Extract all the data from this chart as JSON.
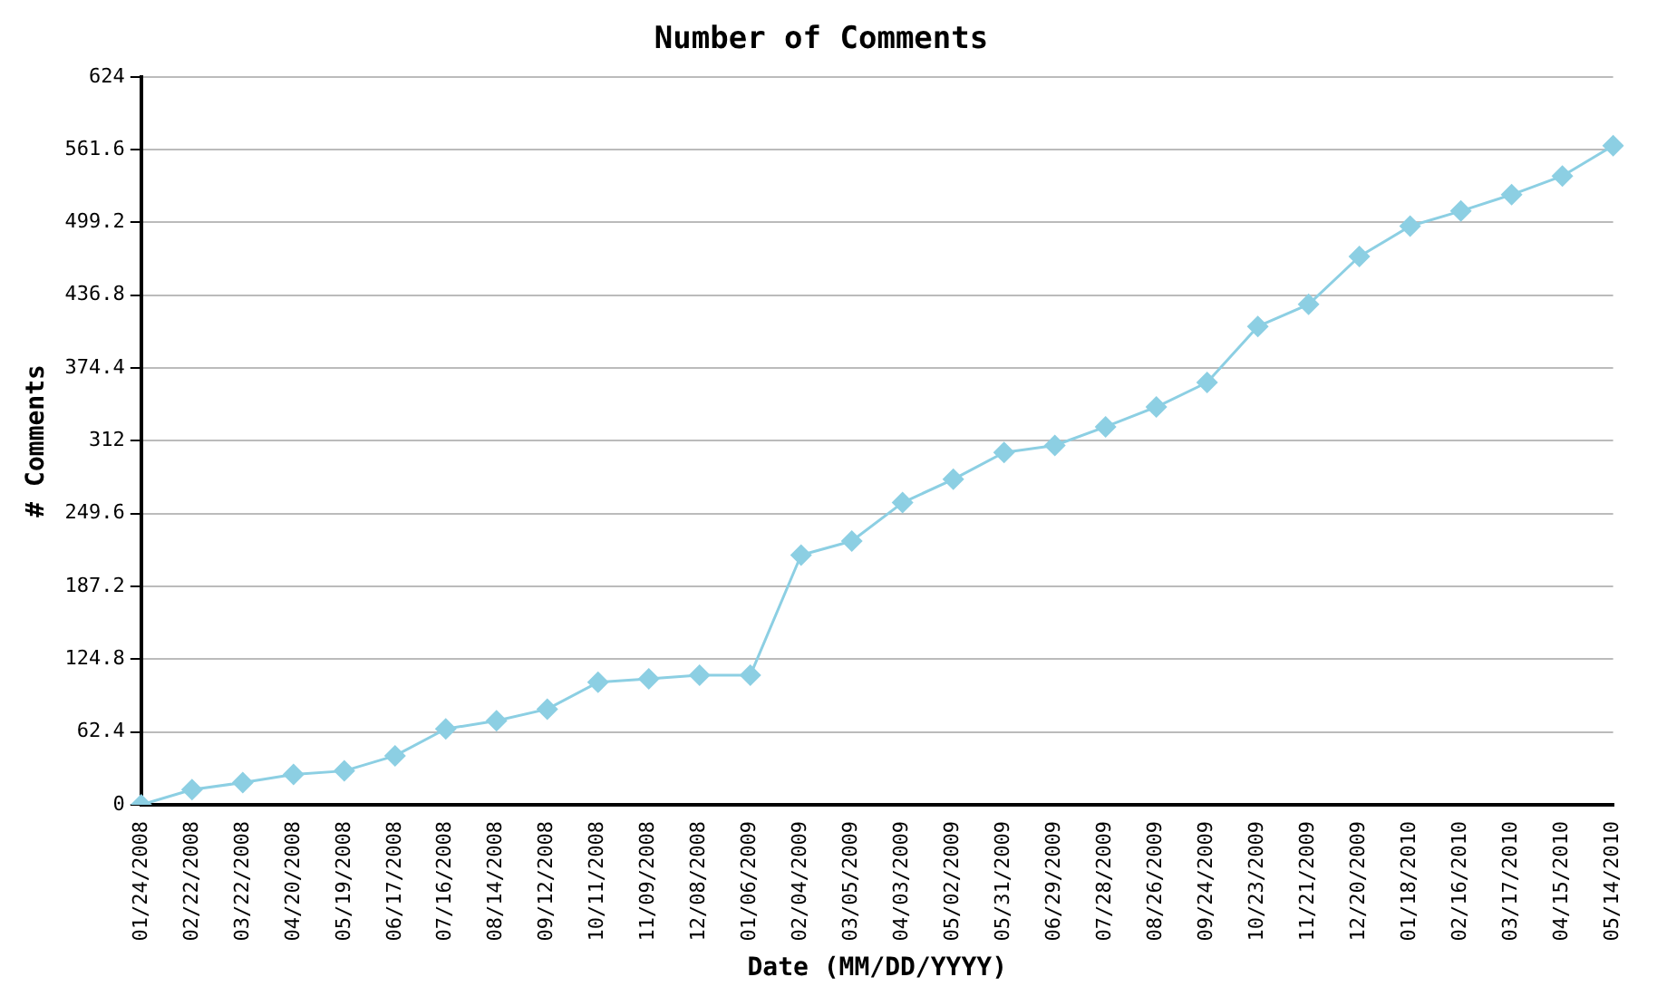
{
  "chart_data": {
    "type": "line",
    "title": "Number of Comments",
    "xlabel": "Date (MM/DD/YYYY)",
    "ylabel": "# Comments",
    "categories": [
      "01/24/2008",
      "02/22/2008",
      "03/22/2008",
      "04/20/2008",
      "05/19/2008",
      "06/17/2008",
      "07/16/2008",
      "08/14/2008",
      "09/12/2008",
      "10/11/2008",
      "11/09/2008",
      "12/08/2008",
      "01/06/2009",
      "02/04/2009",
      "03/05/2009",
      "04/03/2009",
      "05/02/2009",
      "05/31/2009",
      "06/29/2009",
      "07/28/2009",
      "08/26/2009",
      "09/24/2009",
      "10/23/2009",
      "11/21/2009",
      "12/20/2009",
      "01/18/2010",
      "02/16/2010",
      "03/17/2010",
      "04/15/2010",
      "05/14/2010"
    ],
    "series": [
      {
        "color": "#8ccfe3",
        "values": [
          0,
          13,
          19,
          26,
          29,
          42,
          65,
          72,
          82,
          105,
          108,
          111,
          111,
          214,
          226,
          259,
          279,
          302,
          308,
          324,
          341,
          362,
          410,
          429,
          470,
          496,
          509,
          523,
          539,
          565
        ]
      }
    ],
    "ylim": [
      0,
      624
    ],
    "yticks": [
      0,
      62.4,
      124.8,
      187.2,
      249.6,
      312,
      374.4,
      436.8,
      499.2,
      561.6,
      624
    ],
    "grid": "y",
    "legend": false,
    "marker": "diamond",
    "line_style": "solid"
  }
}
